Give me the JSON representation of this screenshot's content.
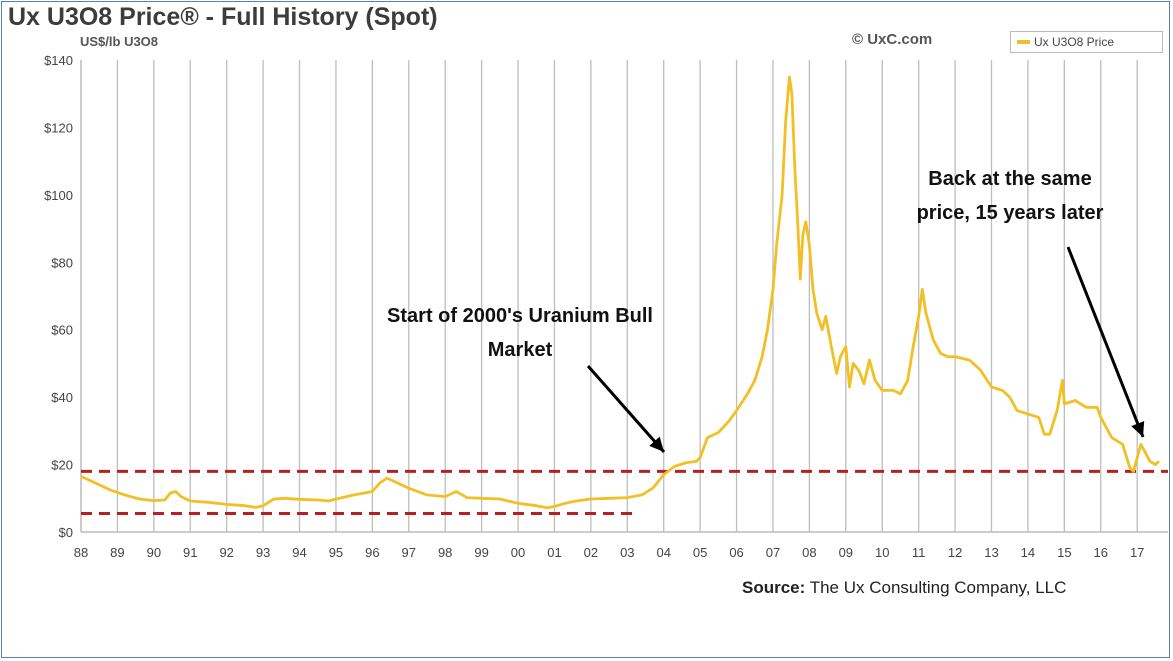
{
  "chart_data": {
    "type": "line",
    "title": "Ux U3O8 Price® - Full History (Spot)",
    "units": "US$/lb U3O8",
    "copyright": "© UxC.com",
    "legend": {
      "entries": [
        "Ux U3O8 Price"
      ],
      "position": "top-right",
      "color": "#f2c025"
    },
    "source_label": "Source:",
    "source_text": "The Ux Consulting Company, LLC",
    "x_tick_labels": [
      "88",
      "89",
      "90",
      "91",
      "92",
      "93",
      "94",
      "95",
      "96",
      "97",
      "98",
      "99",
      "00",
      "01",
      "02",
      "03",
      "04",
      "05",
      "06",
      "07",
      "08",
      "09",
      "10",
      "11",
      "12",
      "13",
      "14",
      "15",
      "16",
      "17"
    ],
    "y_tick_labels": [
      "$0",
      "$20",
      "$40",
      "$60",
      "$80",
      "$100",
      "$120",
      "$140"
    ],
    "ylim": [
      0,
      140
    ],
    "grid": "vertical lines at each year",
    "reference_lines": [
      {
        "value": 18,
        "color": "#b22222",
        "style": "dashed",
        "span": "full"
      },
      {
        "value": 5.5,
        "color": "#b22222",
        "style": "dashed",
        "span": "1988-2003"
      }
    ],
    "annotations": [
      {
        "id": "bull",
        "lines": [
          "Start of 2000's Uranium Bull",
          "Market"
        ]
      },
      {
        "id": "same",
        "lines": [
          "Back at the same",
          "price, 15 years later"
        ]
      }
    ],
    "series": [
      {
        "name": "Ux U3O8 Price",
        "color": "#f2c025",
        "points": [
          [
            1988.0,
            16.5
          ],
          [
            1988.4,
            14.5
          ],
          [
            1988.8,
            12.5
          ],
          [
            1989.2,
            11
          ],
          [
            1989.6,
            9.8
          ],
          [
            1990.0,
            9.3
          ],
          [
            1990.3,
            9.5
          ],
          [
            1990.45,
            11.5
          ],
          [
            1990.6,
            12
          ],
          [
            1990.75,
            10.5
          ],
          [
            1991.0,
            9.2
          ],
          [
            1991.5,
            8.8
          ],
          [
            1992.0,
            8.2
          ],
          [
            1992.5,
            7.8
          ],
          [
            1992.8,
            7.3
          ],
          [
            1993.0,
            7.8
          ],
          [
            1993.3,
            9.8
          ],
          [
            1993.6,
            10
          ],
          [
            1994.0,
            9.7
          ],
          [
            1994.5,
            9.5
          ],
          [
            1994.8,
            9.2
          ],
          [
            1995.0,
            9.8
          ],
          [
            1995.5,
            11
          ],
          [
            1996.0,
            12
          ],
          [
            1996.2,
            14.5
          ],
          [
            1996.4,
            16
          ],
          [
            1996.6,
            15
          ],
          [
            1996.8,
            14
          ],
          [
            1997.0,
            13
          ],
          [
            1997.5,
            11
          ],
          [
            1998.0,
            10.5
          ],
          [
            1998.3,
            12
          ],
          [
            1998.6,
            10.2
          ],
          [
            1999.0,
            10
          ],
          [
            1999.5,
            9.8
          ],
          [
            2000.0,
            8.5
          ],
          [
            2000.5,
            7.8
          ],
          [
            2000.8,
            7.2
          ],
          [
            2001.0,
            7.6
          ],
          [
            2001.3,
            8.5
          ],
          [
            2001.6,
            9.2
          ],
          [
            2002.0,
            9.8
          ],
          [
            2002.5,
            10
          ],
          [
            2003.0,
            10.2
          ],
          [
            2003.4,
            11
          ],
          [
            2003.7,
            13
          ],
          [
            2004.0,
            17
          ],
          [
            2004.3,
            19.5
          ],
          [
            2004.6,
            20.5
          ],
          [
            2004.9,
            21
          ],
          [
            2005.0,
            22
          ],
          [
            2005.2,
            28
          ],
          [
            2005.5,
            29.5
          ],
          [
            2005.8,
            33
          ],
          [
            2006.0,
            36
          ],
          [
            2006.3,
            41
          ],
          [
            2006.5,
            45
          ],
          [
            2006.7,
            52
          ],
          [
            2006.85,
            60
          ],
          [
            2007.0,
            72
          ],
          [
            2007.1,
            85
          ],
          [
            2007.25,
            100
          ],
          [
            2007.35,
            122
          ],
          [
            2007.45,
            135
          ],
          [
            2007.52,
            130
          ],
          [
            2007.6,
            108
          ],
          [
            2007.68,
            92
          ],
          [
            2007.75,
            75
          ],
          [
            2007.82,
            88
          ],
          [
            2007.9,
            92
          ],
          [
            2008.0,
            85
          ],
          [
            2008.1,
            72
          ],
          [
            2008.2,
            65
          ],
          [
            2008.35,
            60
          ],
          [
            2008.45,
            64
          ],
          [
            2008.6,
            55
          ],
          [
            2008.75,
            47
          ],
          [
            2008.85,
            52
          ],
          [
            2009.0,
            55
          ],
          [
            2009.1,
            43
          ],
          [
            2009.2,
            50
          ],
          [
            2009.35,
            48
          ],
          [
            2009.5,
            44
          ],
          [
            2009.65,
            51
          ],
          [
            2009.8,
            45
          ],
          [
            2010.0,
            42
          ],
          [
            2010.3,
            42
          ],
          [
            2010.5,
            41
          ],
          [
            2010.7,
            45
          ],
          [
            2010.85,
            55
          ],
          [
            2011.0,
            64
          ],
          [
            2011.1,
            72
          ],
          [
            2011.2,
            65
          ],
          [
            2011.4,
            57
          ],
          [
            2011.6,
            53
          ],
          [
            2011.8,
            52
          ],
          [
            2012.0,
            52
          ],
          [
            2012.4,
            51
          ],
          [
            2012.7,
            48
          ],
          [
            2013.0,
            43
          ],
          [
            2013.3,
            42
          ],
          [
            2013.5,
            40
          ],
          [
            2013.7,
            36
          ],
          [
            2014.0,
            35
          ],
          [
            2014.3,
            34
          ],
          [
            2014.45,
            29
          ],
          [
            2014.6,
            29
          ],
          [
            2014.8,
            36
          ],
          [
            2014.95,
            45
          ],
          [
            2015.0,
            38
          ],
          [
            2015.3,
            39
          ],
          [
            2015.6,
            37
          ],
          [
            2015.9,
            37
          ],
          [
            2016.0,
            34
          ],
          [
            2016.3,
            28
          ],
          [
            2016.6,
            26
          ],
          [
            2016.8,
            19
          ],
          [
            2016.9,
            18
          ],
          [
            2017.0,
            22
          ],
          [
            2017.1,
            26
          ],
          [
            2017.2,
            24
          ],
          [
            2017.35,
            21
          ],
          [
            2017.5,
            20
          ],
          [
            2017.6,
            21
          ]
        ]
      }
    ]
  }
}
